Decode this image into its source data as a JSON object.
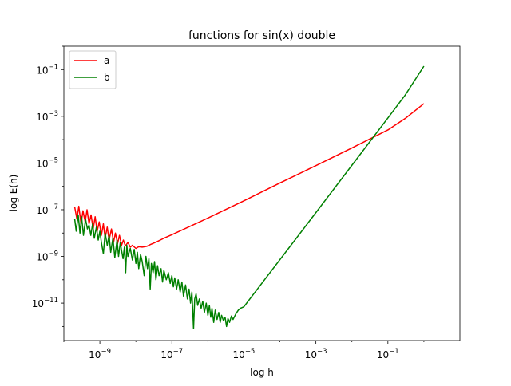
{
  "chart_data": {
    "type": "line",
    "title": "functions for sin(x) double",
    "xlabel": "log h",
    "ylabel": "log E(h)",
    "xscale": "log",
    "yscale": "log",
    "xlim": [
      1e-10,
      10
    ],
    "ylim": [
      2.5e-13,
      1
    ],
    "x_ticks": [
      {
        "value": 1e-09,
        "base": "10",
        "exp": "−9"
      },
      {
        "value": 1e-07,
        "base": "10",
        "exp": "−7"
      },
      {
        "value": 1e-05,
        "base": "10",
        "exp": "−5"
      },
      {
        "value": 0.001,
        "base": "10",
        "exp": "−3"
      },
      {
        "value": 0.1,
        "base": "10",
        "exp": "−1"
      }
    ],
    "y_ticks": [
      {
        "value": 1e-11,
        "base": "10",
        "exp": "−11"
      },
      {
        "value": 1e-09,
        "base": "10",
        "exp": "−9"
      },
      {
        "value": 1e-07,
        "base": "10",
        "exp": "−7"
      },
      {
        "value": 1e-05,
        "base": "10",
        "exp": "−5"
      },
      {
        "value": 0.001,
        "base": "10",
        "exp": "−3"
      },
      {
        "value": 0.1,
        "base": "10",
        "exp": "−1"
      }
    ],
    "grid": false,
    "legend": {
      "position": "top-left"
    },
    "series": [
      {
        "name": "a",
        "color": "#ff0000",
        "points": [
          [
            2e-10,
            1.3e-07
          ],
          [
            2.3e-10,
            4e-08
          ],
          [
            2.6e-10,
            1.4e-07
          ],
          [
            3e-10,
            2.5e-08
          ],
          [
            3.4e-10,
            9e-08
          ],
          [
            3.9e-10,
            3e-08
          ],
          [
            4.4e-10,
            1e-07
          ],
          [
            5e-10,
            2.5e-08
          ],
          [
            5.7e-10,
            6e-08
          ],
          [
            6.5e-10,
            1.5e-08
          ],
          [
            7.4e-10,
            5e-08
          ],
          [
            8.4e-10,
            1.2e-08
          ],
          [
            9.6e-10,
            3e-08
          ],
          [
            1.1e-09,
            8e-09
          ],
          [
            1.25e-09,
            2.5e-08
          ],
          [
            1.4e-09,
            6e-09
          ],
          [
            1.6e-09,
            1.8e-08
          ],
          [
            1.8e-09,
            5e-09
          ],
          [
            2.1e-09,
            1.5e-08
          ],
          [
            2.4e-09,
            4e-09
          ],
          [
            2.7e-09,
            1e-08
          ],
          [
            3.1e-09,
            3.5e-09
          ],
          [
            3.5e-09,
            8e-09
          ],
          [
            4e-09,
            3e-09
          ],
          [
            4.5e-09,
            5e-09
          ],
          [
            5.1e-09,
            2.8e-09
          ],
          [
            6e-09,
            4e-09
          ],
          [
            7e-09,
            2.5e-09
          ],
          [
            8e-09,
            3e-09
          ],
          [
            1e-08,
            2.2e-09
          ],
          [
            1.2e-08,
            2.6e-09
          ],
          [
            1.5e-08,
            2.5e-09
          ],
          [
            2e-08,
            2.7e-09
          ],
          [
            2.5e-08,
            3.2e-09
          ],
          [
            3e-08,
            3.6e-09
          ],
          [
            4e-08,
            4.4e-09
          ],
          [
            6e-08,
            6e-09
          ],
          [
            1e-07,
            8.5e-09
          ],
          [
            1e-06,
            4.4e-08
          ],
          [
            1e-05,
            2.4e-07
          ],
          [
            0.0001,
            1.4e-06
          ],
          [
            0.001,
            7.7e-06
          ],
          [
            0.01,
            4.4e-05
          ],
          [
            0.1,
            0.00026
          ],
          [
            0.3,
            0.0008
          ],
          [
            1,
            0.0035
          ]
        ]
      },
      {
        "name": "b",
        "color": "#008000",
        "points": [
          [
            2e-10,
            4e-08
          ],
          [
            2.2e-10,
            1.2e-08
          ],
          [
            2.5e-10,
            6e-08
          ],
          [
            2.8e-10,
            1e-08
          ],
          [
            3.1e-10,
            5e-08
          ],
          [
            3.5e-10,
            8e-09
          ],
          [
            4e-10,
            4e-08
          ],
          [
            4.5e-10,
            1.5e-08
          ],
          [
            5e-10,
            2.2e-08
          ],
          [
            5.6e-10,
            8e-09
          ],
          [
            6.3e-10,
            2.5e-08
          ],
          [
            7e-10,
            6e-09
          ],
          [
            8e-10,
            1.8e-08
          ],
          [
            9e-10,
            5e-09
          ],
          [
            1e-09,
            1.2e-08
          ],
          [
            1.1e-09,
            4e-09
          ],
          [
            1.25e-09,
            1.3e-09
          ],
          [
            1.4e-09,
            1e-08
          ],
          [
            1.6e-09,
            3e-09
          ],
          [
            1.8e-09,
            8e-09
          ],
          [
            2e-09,
            1.5e-09
          ],
          [
            2.3e-09,
            6e-09
          ],
          [
            2.6e-09,
            9e-10
          ],
          [
            3e-09,
            5e-09
          ],
          [
            3.3e-09,
            1e-09
          ],
          [
            3.7e-09,
            4e-09
          ],
          [
            4e-09,
            1.8e-09
          ],
          [
            4.4e-09,
            8e-10
          ],
          [
            4.8e-09,
            2.5e-09
          ],
          [
            5.2e-09,
            2e-10
          ],
          [
            5.6e-09,
            3e-09
          ],
          [
            6e-09,
            1e-09
          ],
          [
            7e-09,
            2.2e-09
          ],
          [
            8e-09,
            7e-10
          ],
          [
            9e-09,
            2e-09
          ],
          [
            1e-08,
            5e-10
          ],
          [
            1.1e-08,
            1.5e-09
          ],
          [
            1.2e-08,
            3e-10
          ],
          [
            1.35e-08,
            1.2e-09
          ],
          [
            1.5e-08,
            6e-10
          ],
          [
            1.7e-08,
            1.5e-10
          ],
          [
            1.9e-08,
            1e-09
          ],
          [
            2.1e-08,
            3e-10
          ],
          [
            2.3e-08,
            8e-10
          ],
          [
            2.5e-08,
            4e-11
          ],
          [
            2.7e-08,
            5e-10
          ],
          [
            3e-08,
            2e-10
          ],
          [
            3.3e-08,
            6e-10
          ],
          [
            3.6e-08,
            1e-10
          ],
          [
            4e-08,
            4e-10
          ],
          [
            4.4e-08,
            1.5e-10
          ],
          [
            5e-08,
            3e-10
          ],
          [
            5.5e-08,
            8e-11
          ],
          [
            6e-08,
            2.5e-10
          ],
          [
            7e-08,
            1e-10
          ],
          [
            8e-08,
            2e-10
          ],
          [
            9e-08,
            7e-11
          ],
          [
            1e-07,
            1.5e-10
          ],
          [
            1.1e-07,
            5e-11
          ],
          [
            1.2e-07,
            1.2e-10
          ],
          [
            1.35e-07,
            4e-11
          ],
          [
            1.5e-07,
            1e-10
          ],
          [
            1.7e-07,
            3e-11
          ],
          [
            1.9e-07,
            8e-11
          ],
          [
            2.1e-07,
            2e-11
          ],
          [
            2.4e-07,
            6e-11
          ],
          [
            2.7e-07,
            1.5e-11
          ],
          [
            3e-07,
            4e-11
          ],
          [
            3.3e-07,
            1e-11
          ],
          [
            3.6e-07,
            3e-11
          ],
          [
            4e-07,
            8e-13
          ],
          [
            4.3e-07,
            1.5e-11
          ],
          [
            4.7e-07,
            2.5e-11
          ],
          [
            5.2e-07,
            8e-12
          ],
          [
            5.8e-07,
            1.5e-11
          ],
          [
            6.5e-07,
            6e-12
          ],
          [
            7.2e-07,
            1.2e-11
          ],
          [
            8e-07,
            4e-12
          ],
          [
            9e-07,
            1e-11
          ],
          [
            1e-06,
            3e-12
          ],
          [
            1.1e-06,
            8e-12
          ],
          [
            1.2e-06,
            2.5e-12
          ],
          [
            1.3e-06,
            6e-12
          ],
          [
            1.45e-06,
            1.5e-12
          ],
          [
            1.6e-06,
            5e-12
          ],
          [
            1.8e-06,
            2e-12
          ],
          [
            2e-06,
            4e-12
          ],
          [
            2.2e-06,
            1.5e-12
          ],
          [
            2.4e-06,
            3e-12
          ],
          [
            2.7e-06,
            1.8e-12
          ],
          [
            3e-06,
            2.5e-12
          ],
          [
            3.3e-06,
            1e-12
          ],
          [
            3.6e-06,
            2.2e-12
          ],
          [
            4e-06,
            1.5e-12
          ],
          [
            4.5e-06,
            2.8e-12
          ],
          [
            5e-06,
            2e-12
          ],
          [
            6e-06,
            3.5e-12
          ],
          [
            7e-06,
            5e-12
          ],
          [
            8e-06,
            6e-12
          ],
          [
            1e-05,
            7e-12
          ],
          [
            0.001,
            7.5e-08
          ],
          [
            0.01,
            8e-06
          ],
          [
            0.1,
            0.00085
          ],
          [
            0.3,
            0.008
          ],
          [
            1,
            0.14
          ]
        ]
      }
    ]
  }
}
